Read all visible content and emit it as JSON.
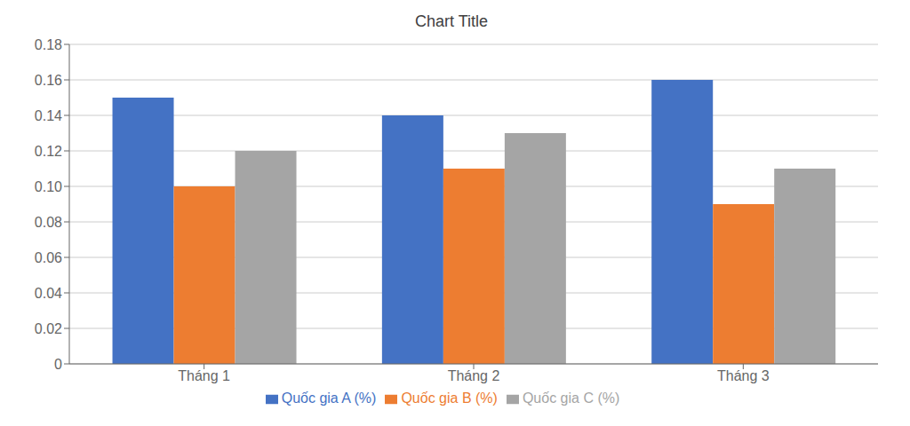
{
  "chart_data": {
    "type": "bar",
    "title": "Chart Title",
    "categories": [
      "Tháng 1",
      "Tháng 2",
      "Tháng 3"
    ],
    "series": [
      {
        "name": "Quốc gia A (%)",
        "color": "#4472C4",
        "values": [
          0.15,
          0.14,
          0.16
        ]
      },
      {
        "name": "Quốc gia B (%)",
        "color": "#ED7D31",
        "values": [
          0.1,
          0.11,
          0.09
        ]
      },
      {
        "name": "Quốc gia C (%)",
        "color": "#A5A5A5",
        "values": [
          0.12,
          0.13,
          0.11
        ]
      }
    ],
    "ylim": [
      0,
      0.18
    ],
    "yticks": [
      0,
      0.02,
      0.04,
      0.06,
      0.08,
      {
        "value": 0.1,
        "label": "0.10"
      },
      0.12,
      0.14,
      0.16,
      0.18
    ],
    "grid": true,
    "legend": "bottom"
  }
}
